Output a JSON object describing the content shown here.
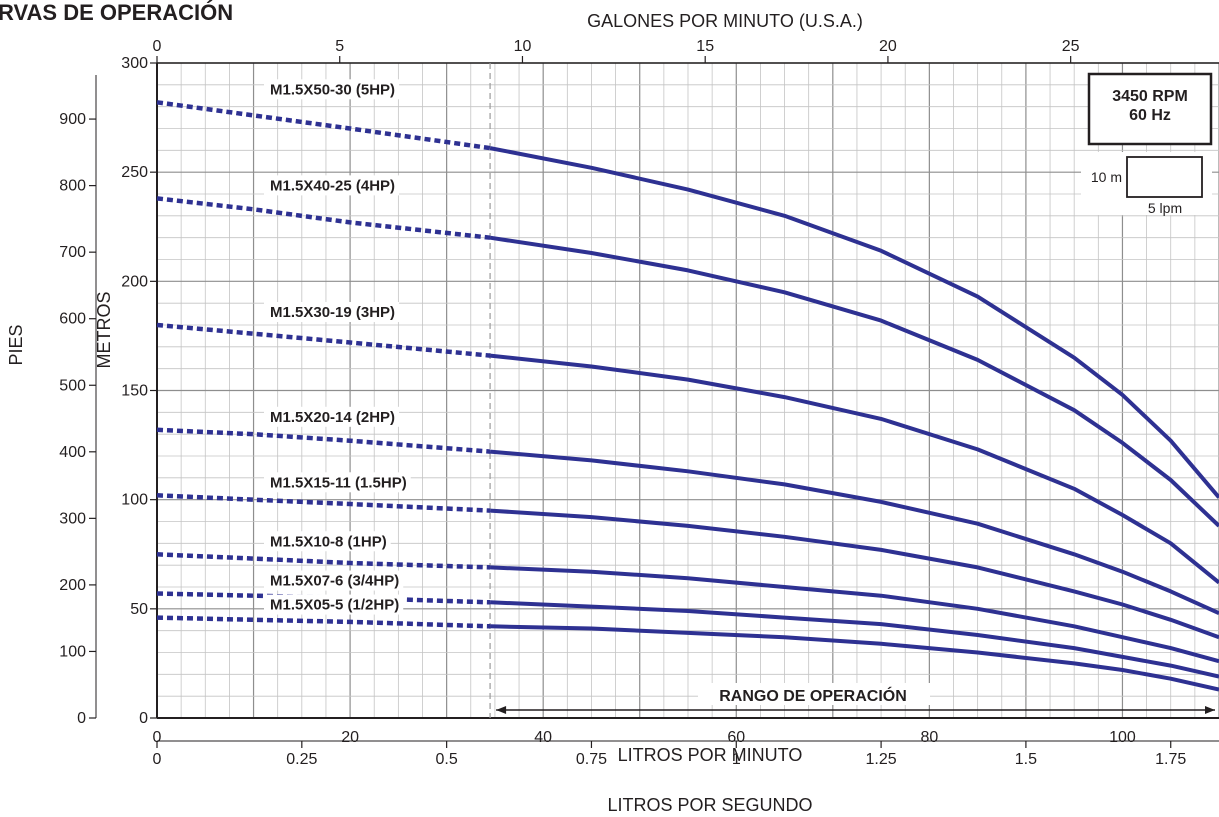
{
  "chart_data": {
    "type": "line",
    "title": "CURVAS DE OPERACIÓN",
    "title_visible": "RVAS DE OPERACIÓN",
    "xlabel": "LITROS POR MINUTO",
    "xlabel_top": "GALONES POR MINUTO (U.S.A.)",
    "xlabel_bottom": "LITROS POR SEGUNDO",
    "ylabel": "METROS",
    "ylabel_outer": "PIES",
    "xlim": [
      0,
      110
    ],
    "ylim": [
      0,
      300
    ],
    "x_ticks": [
      "0",
      "20",
      "40",
      "60",
      "80",
      "100"
    ],
    "gpm_ticks": [
      "0",
      "5",
      "10",
      "15",
      "20",
      "25"
    ],
    "lps_ticks": [
      "0",
      "0.25",
      "0.5",
      "0.75",
      "1",
      "1.25",
      "1.5",
      "1.75"
    ],
    "y_ticks": [
      "0",
      "50",
      "100",
      "150",
      "200",
      "250",
      "300"
    ],
    "ft_ticks": [
      "0",
      "100",
      "200",
      "300",
      "400",
      "500",
      "600",
      "700",
      "800",
      "900"
    ],
    "grid": true,
    "operating_range_start_lpm": 34.5,
    "series": [
      {
        "name": "M1.5X50-30 (5HP)",
        "x": [
          0,
          10,
          20,
          34.5,
          45,
          55,
          65,
          75,
          85,
          95,
          100,
          105,
          110
        ],
        "y": [
          282,
          276,
          270,
          261,
          252,
          242,
          230,
          214,
          193,
          165,
          148,
          127,
          101
        ]
      },
      {
        "name": "M1.5X40-25 (4HP)",
        "x": [
          0,
          10,
          20,
          34.5,
          45,
          55,
          65,
          75,
          85,
          95,
          100,
          105,
          110
        ],
        "y": [
          238,
          233,
          227,
          220,
          213,
          205,
          195,
          182,
          164,
          141,
          126,
          109,
          88
        ]
      },
      {
        "name": "M1.5X30-19 (3HP)",
        "x": [
          0,
          10,
          20,
          34.5,
          45,
          55,
          65,
          75,
          85,
          95,
          100,
          105,
          110
        ],
        "y": [
          180,
          176,
          172,
          166,
          161,
          155,
          147,
          137,
          123,
          105,
          93,
          80,
          62
        ]
      },
      {
        "name": "M1.5X20-14 (2HP)",
        "x": [
          0,
          10,
          20,
          34.5,
          45,
          55,
          65,
          75,
          85,
          95,
          100,
          105,
          110
        ],
        "y": [
          132,
          130,
          127,
          122,
          118,
          113,
          107,
          99,
          89,
          75,
          67,
          58,
          48
        ]
      },
      {
        "name": "M1.5X15-11 (1.5HP)",
        "x": [
          0,
          10,
          20,
          34.5,
          45,
          55,
          65,
          75,
          85,
          95,
          100,
          105,
          110
        ],
        "y": [
          102,
          100,
          98,
          95,
          92,
          88,
          83,
          77,
          69,
          58,
          52,
          45,
          37
        ]
      },
      {
        "name": "M1.5X10-8 (1HP)",
        "x": [
          0,
          10,
          20,
          34.5,
          45,
          55,
          65,
          75,
          85,
          95,
          100,
          105,
          110
        ],
        "y": [
          75,
          73,
          71,
          69,
          67,
          64,
          60,
          56,
          50,
          42,
          37,
          32,
          26
        ]
      },
      {
        "name": "M1.5X07-6 (3/4HP)",
        "x": [
          0,
          10,
          20,
          34.5,
          45,
          55,
          65,
          75,
          85,
          95,
          100,
          105,
          110
        ],
        "y": [
          57,
          56,
          55,
          53,
          51,
          49,
          46,
          43,
          38,
          32,
          28,
          24,
          19
        ]
      },
      {
        "name": "M1.5X05-5 (1/2HP)",
        "x": [
          0,
          10,
          20,
          34.5,
          45,
          55,
          65,
          75,
          85,
          95,
          100,
          105,
          110
        ],
        "y": [
          46,
          45,
          44,
          42,
          41,
          39,
          37,
          34,
          30,
          25,
          22,
          18,
          13
        ]
      }
    ],
    "annotations": {
      "rpm": "3450 RPM",
      "hz": "60 Hz",
      "scale_v": "10 m",
      "scale_h": "5 lpm",
      "range_label": "RANGO DE OPERACIÓN"
    },
    "colors": {
      "curve": "#2e3192",
      "grid_major": "#8e8e8e",
      "grid_minor": "#c4c4c4",
      "text": "#231f20"
    }
  }
}
